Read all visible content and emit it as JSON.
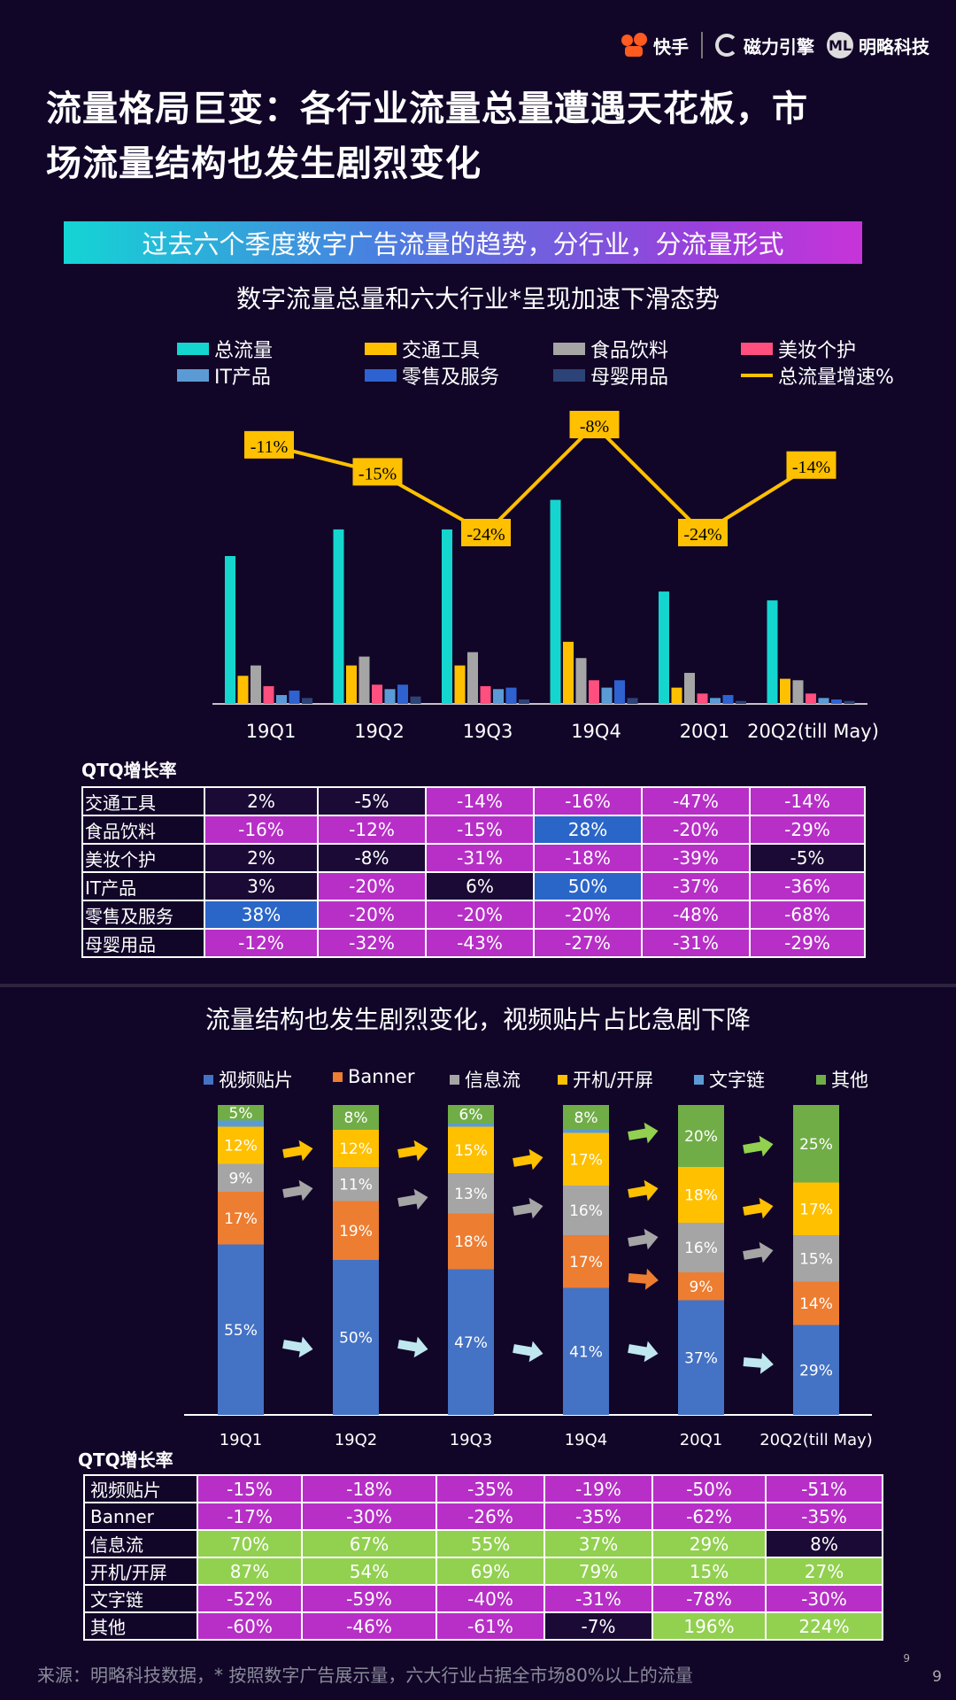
{
  "header": {
    "logo_kuaishou": "快手",
    "logo_cili": "磁力引擎",
    "logo_minglue": "明略科技",
    "title_line1": "流量格局巨变：各行业流量总量遭遇天花板，市",
    "title_line2": "场流量结构也发生剧烈变化"
  },
  "banner": {
    "text": "过去六个季度数字广告流量的趋势，分行业，分流量形式"
  },
  "section1": {
    "subtitle": "数字流量总量和六大行业*呈现加速下滑态势"
  },
  "section2": {
    "subtitle": "流量结构也发生剧烈变化，视频贴片占比急剧下降"
  },
  "chart_data": [
    {
      "type": "bar",
      "categories": [
        "19Q1",
        "19Q2",
        "19Q3",
        "19Q4",
        "20Q1",
        "20Q2(till May)"
      ],
      "series": [
        {
          "name": "总流量",
          "color": "#14d6cf",
          "values": [
            100,
            118,
            118,
            138,
            76,
            70
          ]
        },
        {
          "name": "交通工具",
          "color": "#ffc000",
          "values": [
            19,
            26,
            26,
            42,
            11,
            17
          ]
        },
        {
          "name": "食品饮料",
          "color": "#a5a5a5",
          "values": [
            26,
            32,
            35,
            31,
            21,
            16
          ]
        },
        {
          "name": "美妆个护",
          "color": "#ff4f7e",
          "values": [
            12,
            13,
            12,
            16,
            7,
            7
          ]
        },
        {
          "name": "IT产品",
          "color": "#5b9bd5",
          "values": [
            6,
            10,
            10,
            11,
            4,
            4
          ]
        },
        {
          "name": "零售及服务",
          "color": "#2e62d0",
          "values": [
            9,
            13,
            11,
            16,
            6,
            3
          ]
        },
        {
          "name": "母婴用品",
          "color": "#2c4378",
          "values": [
            4,
            5,
            3,
            4,
            2,
            2
          ]
        }
      ],
      "line": {
        "name": "总流量增速%",
        "color": "#ffc000",
        "values": [
          -11,
          -15,
          -24,
          -8,
          -24,
          -14
        ],
        "labels": [
          "-11%",
          "-15%",
          "-24%",
          "-8%",
          "-24%",
          "-14%"
        ]
      },
      "legend": "top"
    },
    {
      "type": "bar",
      "stacked": true,
      "percent": true,
      "categories": [
        "19Q1",
        "19Q2",
        "19Q3",
        "19Q4",
        "20Q1",
        "20Q2(till May)"
      ],
      "category_labels": [
        "19Q1",
        "19Q2",
        "19Q3",
        "19Q4",
        "20Q1",
        "20Q2(till  May)"
      ],
      "series": [
        {
          "name": "视频贴片",
          "color": "#4472c4",
          "values": [
            55,
            50,
            47,
            41,
            37,
            29
          ]
        },
        {
          "name": "Banner",
          "color": "#ed7d31",
          "values": [
            17,
            19,
            18,
            17,
            9,
            14
          ]
        },
        {
          "name": "信息流",
          "color": "#a5a5a5",
          "values": [
            9,
            11,
            13,
            16,
            16,
            15
          ]
        },
        {
          "name": "开机/开屏",
          "color": "#ffc000",
          "values": [
            12,
            12,
            15,
            17,
            18,
            17
          ]
        },
        {
          "name": "文字链",
          "color": "#5b9bd5",
          "values": [
            2,
            0,
            1,
            1,
            0,
            0
          ]
        },
        {
          "name": "其他",
          "color": "#70ad47",
          "values": [
            5,
            8,
            6,
            8,
            20,
            25
          ]
        }
      ],
      "legend": "top"
    }
  ],
  "table1": {
    "heading": "QTQ增长率",
    "rows": [
      {
        "label": "交通工具",
        "cells": [
          "2%",
          "-5%",
          "-14%",
          "-16%",
          "-47%",
          "-14%"
        ],
        "colors": [
          "#1a0a35",
          "#1a0a35",
          "#b72fc7",
          "#b72fc7",
          "#b72fc7",
          "#b72fc7"
        ]
      },
      {
        "label": "食品饮料",
        "cells": [
          "-16%",
          "-12%",
          "-15%",
          "28%",
          "-20%",
          "-29%"
        ],
        "colors": [
          "#b72fc7",
          "#b72fc7",
          "#b72fc7",
          "#2a66c8",
          "#b72fc7",
          "#b72fc7"
        ]
      },
      {
        "label": "美妆个护",
        "cells": [
          "2%",
          "-8%",
          "-31%",
          "-18%",
          "-39%",
          "-5%"
        ],
        "colors": [
          "#1a0a35",
          "#1a0a35",
          "#b72fc7",
          "#b72fc7",
          "#b72fc7",
          "#1a0a35"
        ]
      },
      {
        "label": "IT产品",
        "cells": [
          "3%",
          "-20%",
          "6%",
          "50%",
          "-37%",
          "-36%"
        ],
        "colors": [
          "#1a0a35",
          "#b72fc7",
          "#1a0a35",
          "#2a66c8",
          "#b72fc7",
          "#b72fc7"
        ]
      },
      {
        "label": "零售及服务",
        "cells": [
          "38%",
          "-20%",
          "-20%",
          "-20%",
          "-48%",
          "-68%"
        ],
        "colors": [
          "#2a66c8",
          "#b72fc7",
          "#b72fc7",
          "#b72fc7",
          "#b72fc7",
          "#b72fc7"
        ]
      },
      {
        "label": "母婴用品",
        "cells": [
          "-12%",
          "-32%",
          "-43%",
          "-27%",
          "-31%",
          "-29%"
        ],
        "colors": [
          "#b72fc7",
          "#b72fc7",
          "#b72fc7",
          "#b72fc7",
          "#b72fc7",
          "#b72fc7"
        ]
      }
    ]
  },
  "table2": {
    "heading": "QTQ增长率",
    "rows": [
      {
        "label": "视频贴片",
        "cells": [
          "-15%",
          "-18%",
          "-35%",
          "-19%",
          "-50%",
          "-51%"
        ],
        "colors": [
          "#b72fc7",
          "#b72fc7",
          "#b72fc7",
          "#b72fc7",
          "#b72fc7",
          "#b72fc7"
        ]
      },
      {
        "label": "Banner",
        "cells": [
          "-17%",
          "-30%",
          "-26%",
          "-35%",
          "-62%",
          "-35%"
        ],
        "colors": [
          "#b72fc7",
          "#b72fc7",
          "#b72fc7",
          "#b72fc7",
          "#b72fc7",
          "#b72fc7"
        ]
      },
      {
        "label": "信息流",
        "cells": [
          "70%",
          "67%",
          "55%",
          "37%",
          "29%",
          "8%"
        ],
        "colors": [
          "#92d050",
          "#92d050",
          "#92d050",
          "#92d050",
          "#92d050",
          "#1a0a35"
        ]
      },
      {
        "label": "开机/开屏",
        "cells": [
          "87%",
          "54%",
          "69%",
          "79%",
          "15%",
          "27%"
        ],
        "colors": [
          "#92d050",
          "#92d050",
          "#92d050",
          "#92d050",
          "#92d050",
          "#92d050"
        ]
      },
      {
        "label": "文字链",
        "cells": [
          "-52%",
          "-59%",
          "-40%",
          "-31%",
          "-78%",
          "-30%"
        ],
        "colors": [
          "#b72fc7",
          "#b72fc7",
          "#b72fc7",
          "#b72fc7",
          "#b72fc7",
          "#b72fc7"
        ]
      },
      {
        "label": "其他",
        "cells": [
          "-60%",
          "-46%",
          "-61%",
          "-7%",
          "196%",
          "224%"
        ],
        "colors": [
          "#b72fc7",
          "#b72fc7",
          "#b72fc7",
          "#1a0a35",
          "#92d050",
          "#92d050"
        ]
      }
    ]
  },
  "arrows": {
    "note_colors": [
      "#ffc000",
      "#a5a5a5",
      "#bfe7ef",
      "#92d050",
      "#ed7d31"
    ]
  },
  "footer": {
    "source": "来源：明略科技数据，* 按照数字广告展示量，六大行业占据全市场80%以上的流量",
    "page_small": "9",
    "page": "9"
  }
}
